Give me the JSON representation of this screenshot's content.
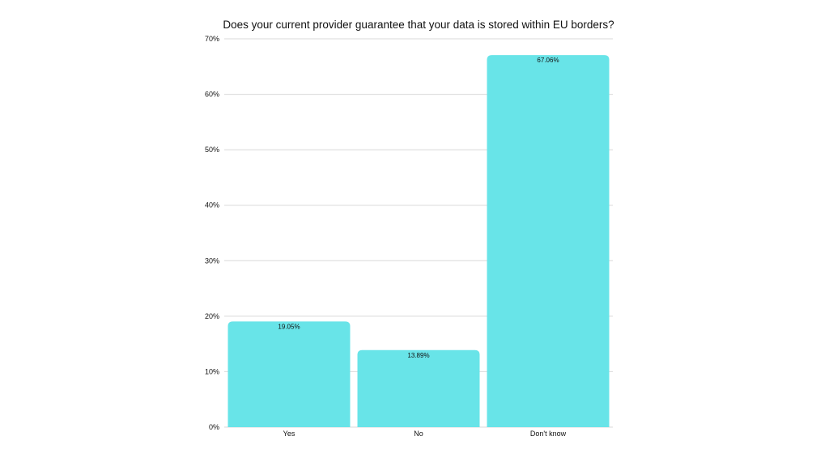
{
  "chart_data": {
    "type": "bar",
    "title": "Does your current provider guarantee that your data is stored within EU borders?",
    "categories": [
      "Yes",
      "No",
      "Don't know"
    ],
    "values": [
      19.05,
      13.89,
      67.06
    ],
    "value_labels": [
      "19.05%",
      "13.89%",
      "67.06%"
    ],
    "ylim": [
      0,
      70
    ],
    "yticks": [
      0,
      10,
      20,
      30,
      40,
      50,
      60,
      70
    ],
    "ytick_labels": [
      "0%",
      "10%",
      "20%",
      "30%",
      "40%",
      "50%",
      "60%",
      "70%"
    ],
    "grid": true,
    "legend": "none",
    "colors": {
      "bar": "#68e4e8",
      "grid": "#d9d9d9",
      "text": "#111111"
    }
  }
}
